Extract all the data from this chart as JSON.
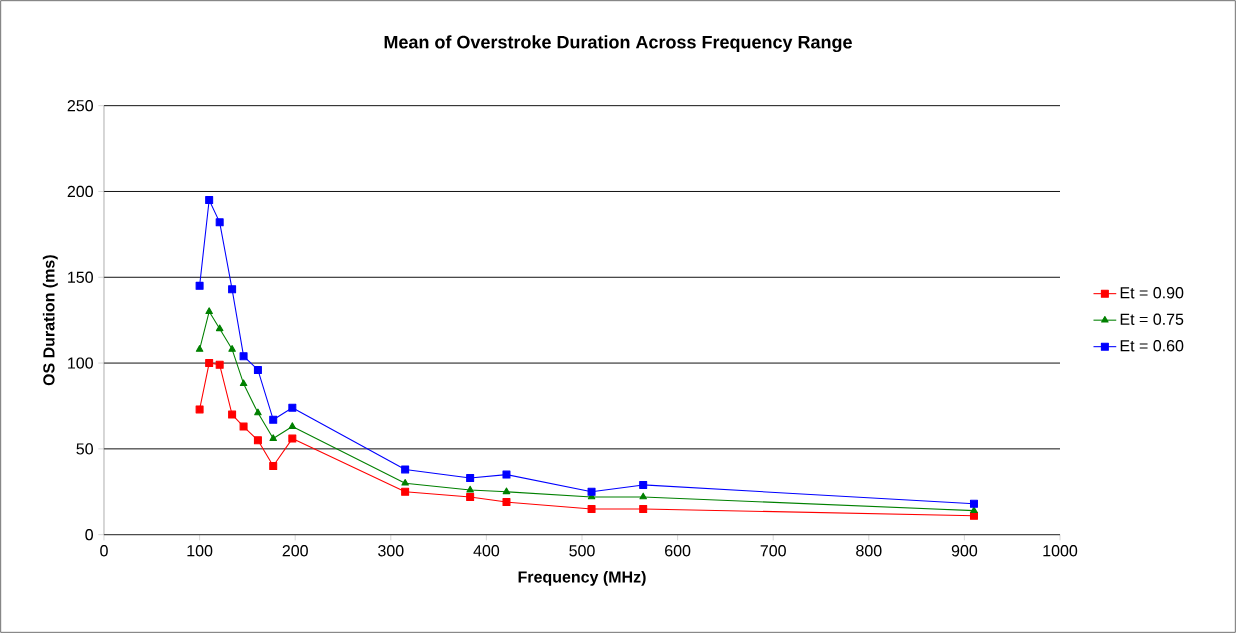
{
  "chart_data": {
    "type": "line",
    "title": "Mean of Overstroke Duration Across Frequency Range",
    "xlabel": "Frequency (MHz)",
    "ylabel": "OS Duration (ms)",
    "xlim": [
      0,
      1000
    ],
    "xticks": [
      0,
      100,
      200,
      300,
      400,
      500,
      600,
      700,
      800,
      900,
      1000
    ],
    "ylim": [
      0,
      250
    ],
    "yticks": [
      0,
      50,
      100,
      150,
      200,
      250
    ],
    "grid": "y",
    "legend": "right",
    "x": [
      100,
      110,
      121,
      134,
      146,
      161,
      177,
      197,
      315,
      383,
      421,
      510,
      564,
      910
    ],
    "series": [
      {
        "name": "Et = 0.90",
        "color": "#ff0000",
        "marker": "square",
        "values": [
          73,
          100,
          99,
          70,
          63,
          55,
          40,
          56,
          25,
          22,
          19,
          15,
          15,
          11
        ]
      },
      {
        "name": "Et = 0.75",
        "color": "#008000",
        "marker": "triangle",
        "values": [
          108,
          130,
          120,
          108,
          88,
          71,
          56,
          63,
          30,
          26,
          25,
          22,
          22,
          14
        ]
      },
      {
        "name": "Et = 0.60",
        "color": "#0000ff",
        "marker": "square",
        "values": [
          145,
          195,
          182,
          143,
          104,
          96,
          67,
          74,
          38,
          33,
          35,
          25,
          29,
          18
        ]
      }
    ]
  }
}
